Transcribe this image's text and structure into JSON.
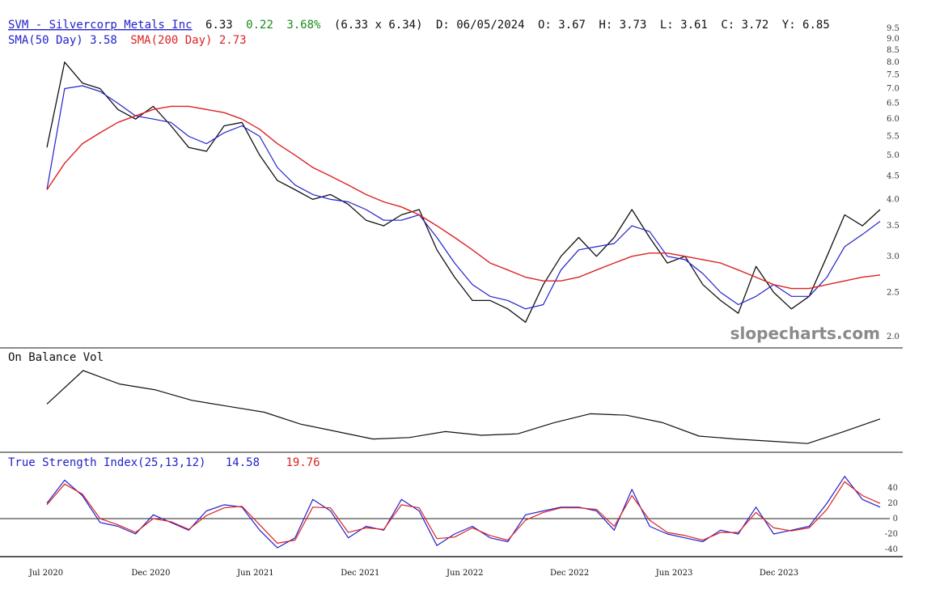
{
  "header": {
    "symbol_name": "SVM - Silvercorp Metals Inc",
    "last": "6.33",
    "change": "0.22",
    "change_pct": "3.68%",
    "bid_ask": "(6.33 x 6.34)",
    "date": "D: 06/05/2024",
    "open": "O: 3.67",
    "high": "H: 3.73",
    "low": "L: 3.61",
    "close": "C: 3.72",
    "year": "Y: 6.85",
    "sma50_label": "SMA(50 Day) 3.58",
    "sma200_label": "SMA(200 Day) 2.73"
  },
  "watermark": "slopecharts.com",
  "obv_panel": {
    "title": "On Balance Vol"
  },
  "tsi_panel": {
    "title": "True Strength Index(25,13,12)",
    "tsi_value": "14.58",
    "signal_value": "19.76"
  },
  "colors": {
    "price": "#111111",
    "sma50": "#2222cc",
    "sma200": "#dd2222",
    "up": "#1a8a1a",
    "obv": "#111111",
    "tsi": "#2222cc",
    "tsi_signal": "#dd2222"
  },
  "x_axis": {
    "ticks": [
      "Jul 2020",
      "Dec 2020",
      "Jun 2021",
      "Dec 2021",
      "Jun 2022",
      "Dec 2022",
      "Jun 2023",
      "Dec 2023"
    ]
  },
  "chart_data": [
    {
      "type": "line",
      "title": "SVM - Silvercorp Metals Inc",
      "y_scale": "log",
      "y_ticks": [
        "9.5",
        "9.0",
        "8.5",
        "8.0",
        "7.5",
        "7.0",
        "6.5",
        "6.0",
        "5.5",
        "5.0",
        "4.5",
        "4.0",
        "3.5",
        "3.0",
        "2.5",
        "2.0"
      ],
      "x": [
        "2020-07",
        "2020-08",
        "2020-09",
        "2020-10",
        "2020-11",
        "2020-12",
        "2021-01",
        "2021-02",
        "2021-03",
        "2021-04",
        "2021-05",
        "2021-06",
        "2021-07",
        "2021-08",
        "2021-09",
        "2021-10",
        "2021-11",
        "2021-12",
        "2022-01",
        "2022-02",
        "2022-03",
        "2022-04",
        "2022-05",
        "2022-06",
        "2022-07",
        "2022-08",
        "2022-09",
        "2022-10",
        "2022-11",
        "2022-12",
        "2023-01",
        "2023-02",
        "2023-03",
        "2023-04",
        "2023-05",
        "2023-06",
        "2023-07",
        "2023-08",
        "2023-09",
        "2023-10",
        "2023-11",
        "2023-12",
        "2024-01",
        "2024-02",
        "2024-03",
        "2024-04",
        "2024-05",
        "2024-06"
      ],
      "series": [
        {
          "name": "Price",
          "values": [
            5.2,
            8.0,
            7.2,
            7.0,
            6.3,
            6.0,
            6.4,
            5.8,
            5.2,
            5.1,
            5.8,
            5.9,
            5.0,
            4.4,
            4.2,
            4.0,
            4.1,
            3.9,
            3.6,
            3.5,
            3.7,
            3.8,
            3.1,
            2.7,
            2.4,
            2.4,
            2.3,
            2.15,
            2.6,
            3.0,
            3.3,
            3.0,
            3.3,
            3.8,
            3.3,
            2.9,
            3.0,
            2.6,
            2.4,
            2.25,
            2.85,
            2.5,
            2.3,
            2.45,
            3.0,
            3.7,
            3.5,
            3.8
          ]
        },
        {
          "name": "SMA(50 Day)",
          "values": [
            4.2,
            7.0,
            7.1,
            6.9,
            6.5,
            6.1,
            6.0,
            5.9,
            5.5,
            5.3,
            5.6,
            5.8,
            5.5,
            4.7,
            4.3,
            4.1,
            4.0,
            3.95,
            3.8,
            3.6,
            3.6,
            3.7,
            3.3,
            2.9,
            2.6,
            2.45,
            2.4,
            2.3,
            2.35,
            2.8,
            3.1,
            3.15,
            3.2,
            3.5,
            3.4,
            3.0,
            2.95,
            2.75,
            2.5,
            2.35,
            2.45,
            2.6,
            2.45,
            2.45,
            2.7,
            3.15,
            3.35,
            3.58
          ]
        },
        {
          "name": "SMA(200 Day)",
          "values": [
            4.2,
            4.8,
            5.3,
            5.6,
            5.9,
            6.1,
            6.3,
            6.4,
            6.4,
            6.3,
            6.2,
            6.0,
            5.7,
            5.3,
            5.0,
            4.7,
            4.5,
            4.3,
            4.1,
            3.95,
            3.85,
            3.7,
            3.5,
            3.3,
            3.1,
            2.9,
            2.8,
            2.7,
            2.65,
            2.65,
            2.7,
            2.8,
            2.9,
            3.0,
            3.05,
            3.05,
            3.0,
            2.95,
            2.9,
            2.8,
            2.7,
            2.6,
            2.55,
            2.55,
            2.6,
            2.65,
            2.7,
            2.73
          ]
        }
      ]
    },
    {
      "type": "line",
      "title": "On Balance Vol",
      "x": [
        "2020-07",
        "2020-09",
        "2020-11",
        "2021-01",
        "2021-03",
        "2021-05",
        "2021-07",
        "2021-09",
        "2021-11",
        "2022-01",
        "2022-03",
        "2022-05",
        "2022-07",
        "2022-09",
        "2022-11",
        "2023-01",
        "2023-03",
        "2023-05",
        "2023-07",
        "2023-09",
        "2023-11",
        "2024-01",
        "2024-03",
        "2024-05"
      ],
      "series": [
        {
          "name": "On Balance Vol",
          "values": [
            0.55,
            1.0,
            0.82,
            0.74,
            0.6,
            0.52,
            0.44,
            0.28,
            0.18,
            0.08,
            0.1,
            0.18,
            0.13,
            0.15,
            0.3,
            0.42,
            0.4,
            0.3,
            0.12,
            0.08,
            0.05,
            0.02,
            0.18,
            0.35
          ]
        }
      ]
    },
    {
      "type": "line",
      "title": "True Strength Index(25,13,12)",
      "y_ticks": [
        "40",
        "20",
        "0",
        "-20",
        "-40"
      ],
      "ylim": [
        -45,
        60
      ],
      "x": [
        "2020-07",
        "2020-08",
        "2020-09",
        "2020-10",
        "2020-11",
        "2020-12",
        "2021-01",
        "2021-02",
        "2021-03",
        "2021-04",
        "2021-05",
        "2021-06",
        "2021-07",
        "2021-08",
        "2021-09",
        "2021-10",
        "2021-11",
        "2021-12",
        "2022-01",
        "2022-02",
        "2022-03",
        "2022-04",
        "2022-05",
        "2022-06",
        "2022-07",
        "2022-08",
        "2022-09",
        "2022-10",
        "2022-11",
        "2022-12",
        "2023-01",
        "2023-02",
        "2023-03",
        "2023-04",
        "2023-05",
        "2023-06",
        "2023-07",
        "2023-08",
        "2023-09",
        "2023-10",
        "2023-11",
        "2023-12",
        "2024-01",
        "2024-02",
        "2024-03",
        "2024-04",
        "2024-05",
        "2024-06"
      ],
      "series": [
        {
          "name": "TSI",
          "values": [
            20,
            50,
            30,
            -5,
            -10,
            -20,
            5,
            -5,
            -15,
            10,
            18,
            15,
            -15,
            -38,
            -25,
            25,
            10,
            -25,
            -10,
            -15,
            25,
            10,
            -35,
            -20,
            -10,
            -25,
            -30,
            5,
            10,
            15,
            15,
            10,
            -15,
            38,
            -10,
            -20,
            -25,
            -30,
            -15,
            -20,
            15,
            -20,
            -15,
            -10,
            20,
            55,
            25,
            15
          ]
        },
        {
          "name": "Signal",
          "values": [
            18,
            45,
            32,
            0,
            -8,
            -18,
            0,
            -4,
            -14,
            4,
            14,
            16,
            -8,
            -32,
            -28,
            15,
            14,
            -18,
            -12,
            -14,
            18,
            14,
            -26,
            -24,
            -12,
            -22,
            -28,
            -2,
            8,
            14,
            14,
            12,
            -10,
            30,
            -2,
            -18,
            -22,
            -28,
            -18,
            -18,
            8,
            -12,
            -16,
            -12,
            12,
            48,
            30,
            19.76
          ]
        }
      ]
    }
  ]
}
